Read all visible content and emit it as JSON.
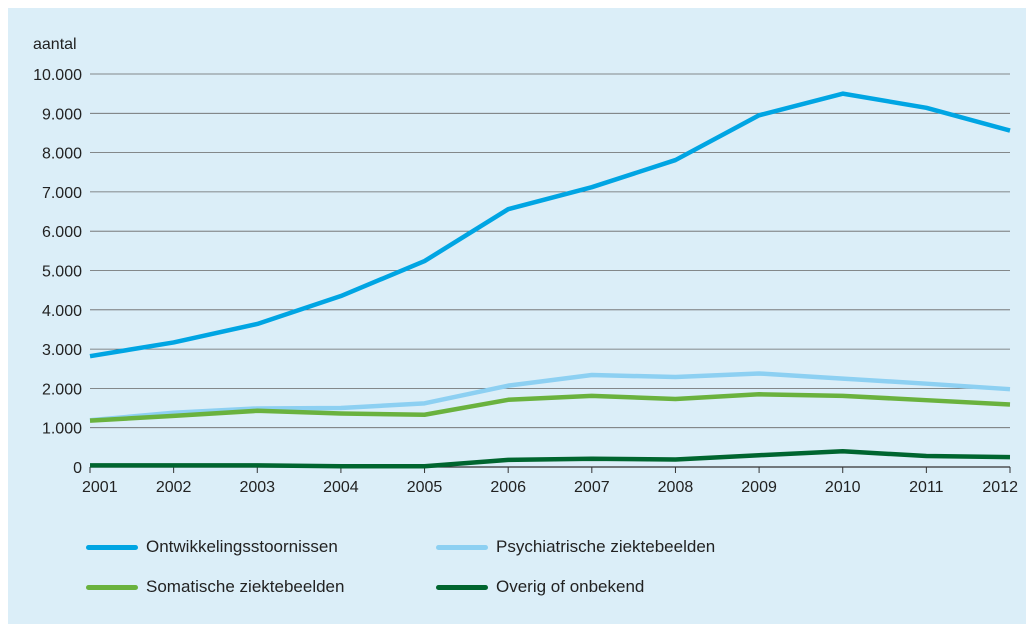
{
  "chart_data": {
    "type": "line",
    "ylabel": "aantal",
    "ylim": [
      0,
      10000
    ],
    "y_ticks": [
      "0",
      "1.000",
      "2.000",
      "3.000",
      "4.000",
      "5.000",
      "6.000",
      "7.000",
      "8.000",
      "9.000",
      "10.000"
    ],
    "x": [
      "2001",
      "2002",
      "2003",
      "2004",
      "2005",
      "2006",
      "2007",
      "2008",
      "2009",
      "2010",
      "2011",
      "2012"
    ],
    "grid": true,
    "legend_position": "bottom",
    "series": [
      {
        "name": "Ontwikkelingsstoornissen",
        "color": "#00a5e3",
        "values": [
          2820,
          3170,
          3640,
          4350,
          5240,
          6560,
          7120,
          7810,
          8950,
          9500,
          9140,
          8560
        ]
      },
      {
        "name": "Psychiatrische ziektebeelden",
        "color": "#8dd0f2",
        "values": [
          1190,
          1380,
          1490,
          1500,
          1620,
          2070,
          2340,
          2290,
          2380,
          2250,
          2120,
          1980
        ]
      },
      {
        "name": "Somatische ziektebeelden",
        "color": "#6ab23e",
        "values": [
          1180,
          1300,
          1430,
          1360,
          1330,
          1710,
          1810,
          1730,
          1850,
          1810,
          1700,
          1590
        ]
      },
      {
        "name": "Overig of onbekend",
        "color": "#00652f",
        "values": [
          40,
          40,
          40,
          20,
          20,
          180,
          210,
          190,
          300,
          400,
          280,
          250
        ]
      }
    ]
  }
}
